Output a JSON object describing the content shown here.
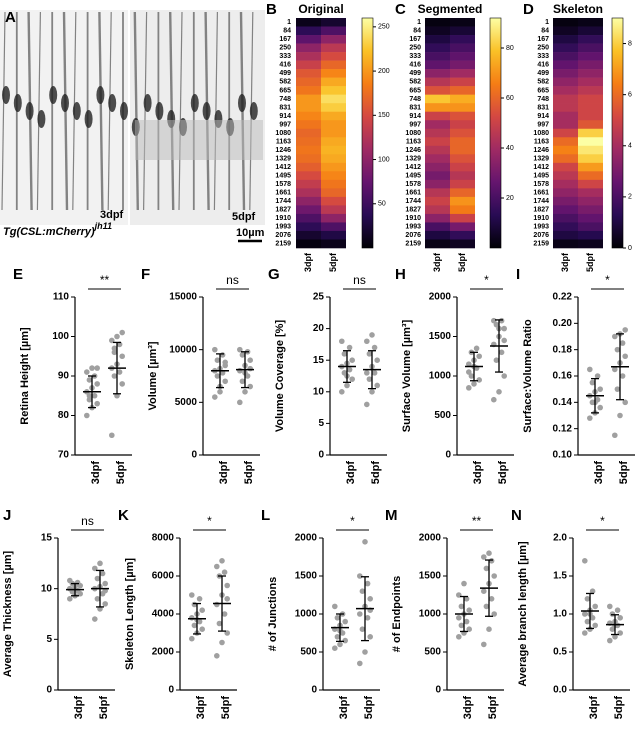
{
  "panel_a": {
    "label": "A",
    "genotype": "Tg(CSL:mCherry)",
    "allele": "jh11",
    "ages": [
      "3dpf",
      "5dpf"
    ],
    "scale_bar": "10µm"
  },
  "chart_data": [
    {
      "type": "heatmap",
      "label": "B",
      "title": "Original",
      "categories": [
        "3dpf",
        "5dpf"
      ],
      "rows": [
        1,
        84,
        167,
        250,
        333,
        416,
        499,
        582,
        665,
        748,
        831,
        914,
        997,
        1080,
        1163,
        1246,
        1329,
        1412,
        1495,
        1578,
        1661,
        1744,
        1827,
        1910,
        1993,
        2076,
        2159
      ],
      "values": [
        [
          10,
          20
        ],
        [
          40,
          60
        ],
        [
          70,
          100
        ],
        [
          100,
          130
        ],
        [
          120,
          150
        ],
        [
          140,
          170
        ],
        [
          160,
          190
        ],
        [
          170,
          210
        ],
        [
          180,
          225
        ],
        [
          200,
          240
        ],
        [
          200,
          230
        ],
        [
          190,
          210
        ],
        [
          180,
          200
        ],
        [
          170,
          200
        ],
        [
          175,
          210
        ],
        [
          180,
          215
        ],
        [
          175,
          210
        ],
        [
          165,
          200
        ],
        [
          150,
          190
        ],
        [
          135,
          180
        ],
        [
          120,
          170
        ],
        [
          100,
          150
        ],
        [
          80,
          130
        ],
        [
          60,
          100
        ],
        [
          40,
          60
        ],
        [
          20,
          30
        ],
        [
          5,
          10
        ]
      ],
      "zlim": [
        0,
        260
      ],
      "zticks": [
        50,
        100,
        150,
        200,
        250
      ]
    },
    {
      "type": "heatmap",
      "label": "C",
      "title": "Segmented",
      "categories": [
        "3dpf",
        "5dpf"
      ],
      "rows": [
        1,
        84,
        167,
        250,
        333,
        416,
        499,
        582,
        665,
        748,
        831,
        914,
        997,
        1080,
        1163,
        1246,
        1329,
        1412,
        1495,
        1578,
        1661,
        1744,
        1827,
        1910,
        1993,
        2076,
        2159
      ],
      "values": [
        [
          2,
          3
        ],
        [
          5,
          8
        ],
        [
          10,
          15
        ],
        [
          15,
          20
        ],
        [
          20,
          25
        ],
        [
          25,
          30
        ],
        [
          35,
          40
        ],
        [
          45,
          50
        ],
        [
          55,
          60
        ],
        [
          80,
          75
        ],
        [
          70,
          70
        ],
        [
          50,
          55
        ],
        [
          40,
          50
        ],
        [
          45,
          55
        ],
        [
          50,
          60
        ],
        [
          45,
          60
        ],
        [
          40,
          55
        ],
        [
          35,
          50
        ],
        [
          30,
          45
        ],
        [
          35,
          50
        ],
        [
          45,
          60
        ],
        [
          50,
          70
        ],
        [
          45,
          65
        ],
        [
          35,
          50
        ],
        [
          20,
          30
        ],
        [
          10,
          15
        ],
        [
          3,
          5
        ]
      ],
      "zlim": [
        0,
        92
      ],
      "zticks": [
        20,
        40,
        60,
        80
      ]
    },
    {
      "type": "heatmap",
      "label": "D",
      "title": "Skeleton",
      "categories": [
        "3dpf",
        "5dpf"
      ],
      "rows": [
        1,
        84,
        167,
        250,
        333,
        416,
        499,
        582,
        665,
        748,
        831,
        914,
        997,
        1080,
        1163,
        1246,
        1329,
        1412,
        1495,
        1578,
        1661,
        1744,
        1827,
        1910,
        1993,
        2076,
        2159
      ],
      "values": [
        [
          0.2,
          0.3
        ],
        [
          0.5,
          0.8
        ],
        [
          1,
          1.5
        ],
        [
          1.5,
          2
        ],
        [
          2,
          2.5
        ],
        [
          2.5,
          3
        ],
        [
          3,
          3.5
        ],
        [
          3.5,
          4
        ],
        [
          4,
          4.5
        ],
        [
          4.5,
          5
        ],
        [
          4.5,
          5
        ],
        [
          4,
          5
        ],
        [
          4,
          5.5
        ],
        [
          5,
          8
        ],
        [
          6,
          9
        ],
        [
          6.5,
          8.5
        ],
        [
          6,
          8
        ],
        [
          5,
          7
        ],
        [
          4.5,
          6
        ],
        [
          4,
          5
        ],
        [
          3.5,
          4
        ],
        [
          3,
          3.5
        ],
        [
          2.5,
          3
        ],
        [
          2,
          2.5
        ],
        [
          1.5,
          2
        ],
        [
          1,
          1.2
        ],
        [
          0.3,
          0.4
        ]
      ],
      "zlim": [
        0,
        9
      ],
      "zticks": [
        0,
        2,
        4,
        6,
        8
      ]
    },
    {
      "type": "dot",
      "label": "E",
      "ylabel": "Retina Height [µm]",
      "categories": [
        "3dpf",
        "5dpf"
      ],
      "color": "#a0a0a0",
      "values": [
        [
          80,
          82,
          83,
          84,
          85,
          86,
          87,
          88,
          89,
          90,
          91,
          92,
          92,
          85
        ],
        [
          75,
          85,
          88,
          90,
          91,
          92,
          93,
          95,
          96,
          98,
          99,
          100,
          101,
          97
        ]
      ],
      "means": [
        86,
        92
      ],
      "sds": [
        4,
        6.5
      ],
      "ylim": [
        70,
        110
      ],
      "yticks": [
        70,
        80,
        90,
        100,
        110
      ],
      "significance": "**"
    },
    {
      "type": "dot",
      "label": "F",
      "ylabel": "Volume [µm³]",
      "categories": [
        "3dpf",
        "5dpf"
      ],
      "color": "#a0a0a0",
      "values": [
        [
          5500,
          6500,
          7000,
          7500,
          7800,
          8000,
          8200,
          8500,
          9000,
          9500,
          10000,
          6000,
          8800
        ],
        [
          5000,
          6000,
          6500,
          7000,
          7500,
          8000,
          8500,
          9000,
          9500,
          9800,
          10000,
          7800,
          8200
        ]
      ],
      "means": [
        8000,
        8100
      ],
      "sds": [
        1600,
        1700
      ],
      "ylim": [
        0,
        15000
      ],
      "yticks": [
        0,
        5000,
        10000,
        15000
      ],
      "significance": "ns"
    },
    {
      "type": "dot",
      "label": "G",
      "ylabel": "Volume Coverage [%]",
      "categories": [
        "3dpf",
        "5dpf"
      ],
      "color": "#a0a0a0",
      "values": [
        [
          10,
          11,
          12,
          13,
          13.5,
          14,
          14.5,
          15,
          16,
          17,
          18,
          12.5
        ],
        [
          8,
          10,
          11,
          12,
          13,
          13,
          14,
          15,
          16,
          17,
          18,
          19
        ]
      ],
      "means": [
        14,
        13.5
      ],
      "sds": [
        2.5,
        3
      ],
      "ylim": [
        0,
        25
      ],
      "yticks": [
        0,
        5,
        10,
        15,
        20,
        25
      ],
      "significance": "ns"
    },
    {
      "type": "dot",
      "label": "H",
      "ylabel": "Surface Volume [µm³]",
      "categories": [
        "3dpf",
        "5dpf"
      ],
      "color": "#a0a0a0",
      "values": [
        [
          850,
          900,
          950,
          1000,
          1100,
          1150,
          1200,
          1250,
          1300,
          1350,
          1050,
          1120
        ],
        [
          700,
          800,
          1000,
          1200,
          1300,
          1400,
          1500,
          1600,
          1650,
          1700,
          1700,
          1600,
          1450
        ]
      ],
      "means": [
        1120,
        1380
      ],
      "sds": [
        180,
        330
      ],
      "ylim": [
        0,
        2000
      ],
      "yticks": [
        0,
        500,
        1000,
        1500,
        2000
      ],
      "significance": "*"
    },
    {
      "type": "dot",
      "label": "I",
      "ylabel": "Surface:Volume Ratio",
      "categories": [
        "3dpf",
        "5dpf"
      ],
      "color": "#a0a0a0",
      "values": [
        [
          0.128,
          0.132,
          0.136,
          0.14,
          0.142,
          0.145,
          0.148,
          0.15,
          0.155,
          0.16,
          0.165,
          0.14
        ],
        [
          0.115,
          0.13,
          0.14,
          0.15,
          0.16,
          0.165,
          0.17,
          0.175,
          0.18,
          0.185,
          0.19,
          0.192,
          0.195
        ]
      ],
      "means": [
        0.145,
        0.167
      ],
      "sds": [
        0.013,
        0.025
      ],
      "ylim": [
        0.1,
        0.22
      ],
      "yticks": [
        {
          "value": 0.1,
          "label": "0.10"
        },
        0.12,
        0.14,
        0.16,
        0.18,
        {
          "value": 0.2,
          "label": "0.20"
        },
        0.22
      ],
      "significance": "*"
    },
    {
      "type": "dot",
      "label": "J",
      "ylabel": "Average Thickness [µm]",
      "categories": [
        "3dpf",
        "5dpf"
      ],
      "color": "#a0a0a0",
      "values": [
        [
          9,
          9.3,
          9.5,
          9.7,
          9.8,
          10,
          10.2,
          10.3,
          10.5,
          10.6,
          10.8,
          9.9
        ],
        [
          7,
          8,
          8.5,
          9,
          9.5,
          10,
          10.2,
          10.5,
          11,
          11.5,
          12,
          12.5,
          9.8
        ]
      ],
      "means": [
        9.9,
        10
      ],
      "sds": [
        0.6,
        1.8
      ],
      "ylim": [
        0,
        15
      ],
      "yticks": [
        0,
        5,
        10,
        15
      ],
      "significance": "ns"
    },
    {
      "type": "dot",
      "label": "K",
      "ylabel": "Skeleton Length [µm]",
      "categories": [
        "3dpf",
        "5dpf"
      ],
      "color": "#a0a0a0",
      "values": [
        [
          2700,
          3000,
          3200,
          3400,
          3600,
          3800,
          4000,
          4200,
          4500,
          4800,
          5000,
          3700
        ],
        [
          1800,
          2500,
          3000,
          3500,
          4000,
          4500,
          5000,
          5500,
          6000,
          6200,
          6500,
          6800,
          4800
        ]
      ],
      "means": [
        3750,
        4550
      ],
      "sds": [
        800,
        1450
      ],
      "ylim": [
        0,
        8000
      ],
      "yticks": [
        0,
        2000,
        4000,
        6000,
        8000
      ],
      "significance": "*"
    },
    {
      "type": "dot",
      "label": "L",
      "ylabel": "# of Junctions",
      "categories": [
        "3dpf",
        "5dpf"
      ],
      "color": "#a0a0a0",
      "values": [
        [
          550,
          600,
          650,
          700,
          750,
          800,
          850,
          900,
          950,
          1000,
          1100,
          780
        ],
        [
          350,
          500,
          700,
          800,
          950,
          1000,
          1100,
          1200,
          1300,
          1400,
          1500,
          1950,
          1050
        ]
      ],
      "means": [
        820,
        1070
      ],
      "sds": [
        180,
        420
      ],
      "ylim": [
        0,
        2000
      ],
      "yticks": [
        0,
        500,
        1000,
        1500,
        2000
      ],
      "significance": "*"
    },
    {
      "type": "dot",
      "label": "M",
      "ylabel": "# of Endpoints",
      "categories": [
        "3dpf",
        "5dpf"
      ],
      "color": "#a0a0a0",
      "values": [
        [
          700,
          750,
          800,
          850,
          900,
          950,
          1000,
          1050,
          1100,
          1200,
          1250,
          1400
        ],
        [
          600,
          800,
          1000,
          1100,
          1200,
          1300,
          1400,
          1500,
          1600,
          1700,
          1750,
          1800
        ]
      ],
      "means": [
        1000,
        1340
      ],
      "sds": [
        230,
        370
      ],
      "ylim": [
        0,
        2000
      ],
      "yticks": [
        0,
        500,
        1000,
        1500,
        2000
      ],
      "significance": "**"
    },
    {
      "type": "dot",
      "label": "N",
      "ylabel": "Average branch length [µm]",
      "categories": [
        "3dpf",
        "5dpf"
      ],
      "color": "#a0a0a0",
      "values": [
        [
          0.75,
          0.8,
          0.85,
          0.9,
          0.95,
          1,
          1.05,
          1.1,
          1.2,
          1.3,
          1.7,
          1
        ],
        [
          0.65,
          0.7,
          0.75,
          0.8,
          0.85,
          0.88,
          0.9,
          0.95,
          1,
          1.05,
          1.1,
          0.85
        ]
      ],
      "means": [
        1.04,
        0.86
      ],
      "sds": [
        0.23,
        0.13
      ],
      "ylim": [
        0,
        2
      ],
      "yticks": [
        {
          "value": 0,
          "label": "0.0"
        },
        0.5,
        {
          "value": 1,
          "label": "1.0"
        },
        1.5,
        {
          "value": 2,
          "label": "2.0"
        }
      ],
      "significance": "*"
    }
  ]
}
